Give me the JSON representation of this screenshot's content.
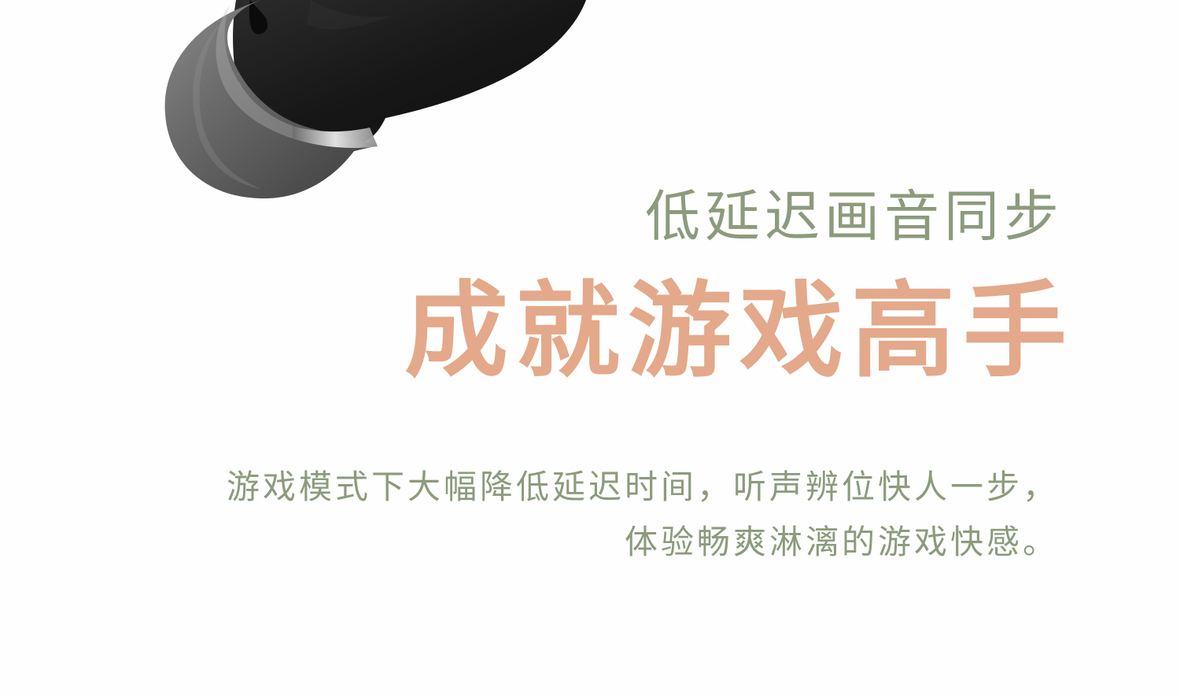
{
  "colors": {
    "subtitle": "#8c9b7c",
    "headline": "#e3a98a",
    "description": "#8c9b7c",
    "background": "#fefefe"
  },
  "hero": {
    "image": "earbud-image",
    "subtitle": "低延迟画音同步",
    "headline": "成就游戏高手",
    "description": [
      "游戏模式下大幅降低延迟时间，听声辨位快人一步，",
      "体验畅爽淋漓的游戏快感。"
    ]
  }
}
